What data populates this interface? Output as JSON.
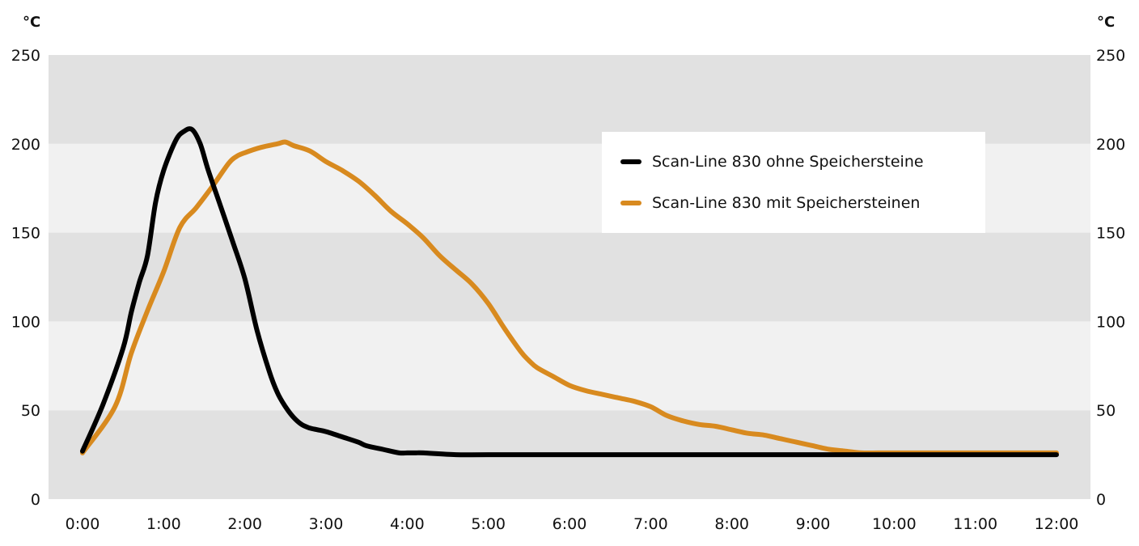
{
  "chart_data": {
    "type": "line",
    "title": "",
    "xlabel": "",
    "ylabel": "°C",
    "ylabel_right": "°C",
    "ylim": [
      0,
      250
    ],
    "yticks": [
      0,
      50,
      100,
      150,
      200,
      250
    ],
    "xlim": [
      0,
      12
    ],
    "xticks": [
      "0:00",
      "1:00",
      "2:00",
      "3:00",
      "4:00",
      "5:00",
      "6:00",
      "7:00",
      "8:00",
      "9:00",
      "10:00",
      "11:00",
      "12:00"
    ],
    "grid": "alternating horizontal bands",
    "legend_placement": "top-right",
    "series": [
      {
        "name": "Scan-Line 830 ohne Speichersteine",
        "color": "#000000",
        "x": [
          0,
          0.25,
          0.5,
          0.6,
          0.7,
          0.8,
          0.9,
          1.0,
          1.15,
          1.25,
          1.35,
          1.45,
          1.55,
          1.7,
          1.85,
          2.0,
          2.15,
          2.3,
          2.4,
          2.5,
          2.6,
          2.7,
          2.8,
          2.9,
          3.0,
          3.2,
          3.4,
          3.5,
          3.7,
          3.9,
          4.0,
          4.1,
          4.2,
          4.6,
          5.0,
          6.0,
          7.0,
          8.0,
          9.0,
          10.0,
          11.0,
          12.0
        ],
        "y": [
          27,
          53,
          85,
          105,
          122,
          137,
          167,
          185,
          202,
          207,
          208,
          200,
          185,
          165,
          145,
          124,
          95,
          72,
          60,
          52,
          46,
          42,
          40,
          39,
          38,
          35,
          32,
          30,
          28,
          26,
          26,
          26,
          26,
          25,
          25,
          25,
          25,
          25,
          25,
          25,
          25,
          25
        ]
      },
      {
        "name": "Scan-Line 830 mit Speichersteinen",
        "color": "#d88a1f",
        "x": [
          0,
          0.4,
          0.6,
          0.8,
          1.0,
          1.2,
          1.4,
          1.6,
          1.8,
          1.9,
          2.0,
          2.2,
          2.4,
          2.5,
          2.6,
          2.8,
          3.0,
          3.2,
          3.4,
          3.6,
          3.8,
          4.0,
          4.2,
          4.4,
          4.6,
          4.8,
          5.0,
          5.2,
          5.4,
          5.5,
          5.6,
          5.8,
          6.0,
          6.2,
          6.4,
          6.6,
          6.8,
          7.0,
          7.2,
          7.4,
          7.6,
          7.8,
          8.0,
          8.2,
          8.4,
          8.6,
          8.8,
          9.0,
          9.2,
          9.4,
          9.6,
          9.8,
          10.0,
          11.0,
          12.0
        ],
        "y": [
          26,
          52,
          82,
          106,
          128,
          153,
          164,
          176,
          189,
          193,
          195,
          198,
          200,
          201,
          199,
          196,
          190,
          185,
          179,
          171,
          162,
          155,
          147,
          137,
          129,
          121,
          110,
          96,
          83,
          78,
          74,
          69,
          64,
          61,
          59,
          57,
          55,
          52,
          47,
          44,
          42,
          41,
          39,
          37,
          36,
          34,
          32,
          30,
          28,
          27,
          26,
          26,
          26,
          26,
          26
        ]
      }
    ]
  }
}
